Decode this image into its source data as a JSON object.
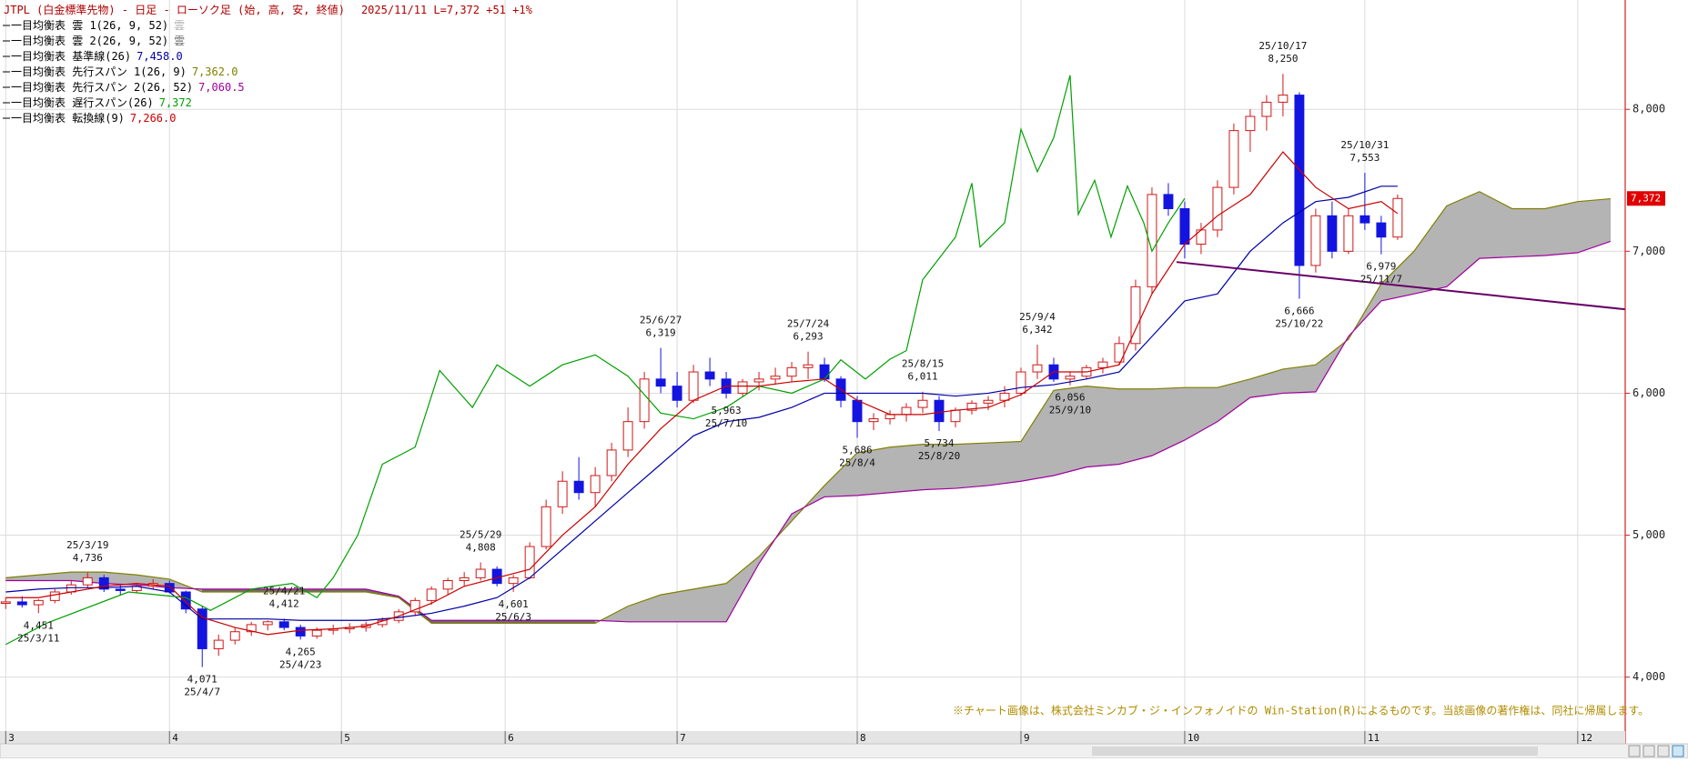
{
  "chart_data": {
    "type": "candlestick",
    "title": "JTPL (白金標準先物) - 日足 - ローソク足 (始, 高, 安, 終値)",
    "quote": "2025/11/11 L=7,372 +51 +1%",
    "credit": "※チャート画像は、株式会社ミンカブ・ジ・インフォノイドの Win-Station(R)によるものです。当該画像の著作権は、同社に帰属します。",
    "up_color": "#d01818",
    "down_color": "#1414e0",
    "grid": true,
    "xlim": [
      -0.7,
      197.8
    ],
    "xticks": [
      {
        "value": 0,
        "label": "3"
      },
      {
        "value": 20,
        "label": "4"
      },
      {
        "value": 41,
        "label": "5"
      },
      {
        "value": 61,
        "label": "6"
      },
      {
        "value": 82,
        "label": "7"
      },
      {
        "value": 104,
        "label": "8"
      },
      {
        "value": 124,
        "label": "9"
      },
      {
        "value": 144,
        "label": "10"
      },
      {
        "value": 166,
        "label": "11"
      },
      {
        "value": 192,
        "label": "12"
      }
    ],
    "ylim": [
      3620,
      8770
    ],
    "yticks": [
      {
        "value": 4000,
        "label": "4,000"
      },
      {
        "value": 5000,
        "label": "5,000"
      },
      {
        "value": 6000,
        "label": "6,000"
      },
      {
        "value": 7000,
        "label": "7,000"
      },
      {
        "value": 8000,
        "label": "8,000"
      }
    ],
    "x": [
      0,
      2,
      4,
      6,
      8,
      10,
      12,
      14,
      16,
      18,
      20,
      22,
      24,
      26,
      28,
      30,
      32,
      34,
      36,
      38,
      40,
      42,
      44,
      46,
      48,
      50,
      52,
      54,
      56,
      58,
      60,
      62,
      64,
      66,
      68,
      70,
      72,
      74,
      76,
      78,
      80,
      82,
      84,
      86,
      88,
      90,
      92,
      94,
      96,
      98,
      100,
      102,
      104,
      106,
      108,
      110,
      112,
      114,
      116,
      118,
      120,
      122,
      124,
      126,
      128,
      130,
      132,
      134,
      136,
      138,
      140,
      142,
      144,
      146,
      148,
      150,
      152,
      154,
      156,
      158,
      160,
      162,
      164,
      166,
      168,
      170
    ],
    "open": [
      4520,
      4530,
      4510,
      4540,
      4600,
      4650,
      4700,
      4620,
      4610,
      4640,
      4660,
      4600,
      4480,
      4200,
      4260,
      4320,
      4370,
      4390,
      4350,
      4290,
      4330,
      4340,
      4350,
      4370,
      4400,
      4460,
      4540,
      4620,
      4680,
      4700,
      4760,
      4660,
      4700,
      4920,
      5200,
      5380,
      5300,
      5420,
      5600,
      5800,
      6100,
      6050,
      5950,
      6150,
      6100,
      6000,
      6080,
      6100,
      6120,
      6180,
      6200,
      6100,
      5950,
      5800,
      5820,
      5850,
      5900,
      5950,
      5800,
      5880,
      5930,
      5950,
      6000,
      6150,
      6200,
      6100,
      6120,
      6180,
      6220,
      6350,
      6750,
      7400,
      7300,
      7050,
      7150,
      7450,
      7850,
      7950,
      8050,
      8100,
      6900,
      7250,
      7000,
      7250,
      7200,
      7100
    ],
    "high": [
      4560,
      4570,
      4550,
      4620,
      4680,
      4736,
      4720,
      4650,
      4660,
      4690,
      4680,
      4610,
      4500,
      4300,
      4350,
      4390,
      4400,
      4412,
      4370,
      4350,
      4370,
      4380,
      4390,
      4420,
      4480,
      4560,
      4640,
      4700,
      4740,
      4808,
      4780,
      4720,
      4950,
      5250,
      5450,
      5550,
      5480,
      5650,
      5900,
      6150,
      6319,
      6150,
      6200,
      6250,
      6150,
      6100,
      6150,
      6180,
      6220,
      6293,
      6250,
      6120,
      5980,
      5860,
      5880,
      5930,
      6011,
      5980,
      5900,
      5950,
      5980,
      6050,
      6180,
      6342,
      6250,
      6150,
      6200,
      6250,
      6400,
      6800,
      7450,
      7480,
      7350,
      7200,
      7500,
      7900,
      8000,
      8100,
      8250,
      8120,
      7300,
      7350,
      7300,
      7553,
      7250,
      7400
    ],
    "low": [
      4480,
      4490,
      4451,
      4520,
      4580,
      4630,
      4600,
      4580,
      4590,
      4620,
      4590,
      4450,
      4071,
      4150,
      4230,
      4290,
      4330,
      4330,
      4265,
      4270,
      4300,
      4310,
      4320,
      4350,
      4380,
      4430,
      4510,
      4580,
      4640,
      4680,
      4640,
      4601,
      4690,
      4900,
      5150,
      5250,
      5200,
      5380,
      5550,
      5750,
      6000,
      5900,
      5930,
      6050,
      5963,
      5980,
      6020,
      6060,
      6080,
      6100,
      6080,
      5900,
      5686,
      5740,
      5780,
      5800,
      5860,
      5734,
      5760,
      5850,
      5880,
      5900,
      5980,
      6100,
      6080,
      6056,
      6100,
      6140,
      6200,
      6300,
      6700,
      7250,
      6950,
      6980,
      7100,
      7400,
      7700,
      7850,
      7950,
      6666,
      6850,
      6950,
      6980,
      7150,
      6979,
      7080
    ],
    "close": [
      4530,
      4510,
      4540,
      4600,
      4650,
      4700,
      4620,
      4610,
      4640,
      4660,
      4600,
      4480,
      4200,
      4260,
      4320,
      4370,
      4390,
      4350,
      4290,
      4330,
      4340,
      4350,
      4370,
      4400,
      4460,
      4540,
      4620,
      4680,
      4700,
      4760,
      4660,
      4700,
      4920,
      5200,
      5380,
      5300,
      5420,
      5600,
      5800,
      6100,
      6050,
      5950,
      6150,
      6100,
      6000,
      6080,
      6100,
      6120,
      6180,
      6200,
      6100,
      5950,
      5800,
      5820,
      5850,
      5900,
      5950,
      5800,
      5880,
      5930,
      5950,
      6000,
      6150,
      6200,
      6100,
      6120,
      6180,
      6220,
      6350,
      6750,
      7400,
      7300,
      7050,
      7150,
      7450,
      7850,
      7950,
      8050,
      8100,
      6900,
      7250,
      7000,
      7250,
      7200,
      7100,
      7372
    ],
    "annotations": [
      {
        "date": "25/3/11",
        "value": 4451,
        "value_label": "4,451"
      },
      {
        "date": "25/3/19",
        "value": 4736,
        "value_label": "4,736"
      },
      {
        "date": "25/4/7",
        "value": 4071,
        "value_label": "4,071"
      },
      {
        "date": "25/4/21",
        "value": 4412,
        "value_label": "4,412"
      },
      {
        "date": "25/4/23",
        "value": 4265,
        "value_label": "4,265"
      },
      {
        "date": "25/5/29",
        "value": 4808,
        "value_label": "4,808"
      },
      {
        "date": "25/6/3",
        "value": 4601,
        "value_label": "4,601"
      },
      {
        "date": "25/6/27",
        "value": 6319,
        "value_label": "6,319"
      },
      {
        "date": "25/7/10",
        "value": 5963,
        "value_label": "5,963"
      },
      {
        "date": "25/7/24",
        "value": 6293,
        "value_label": "6,293"
      },
      {
        "date": "25/8/4",
        "value": 5686,
        "value_label": "5,686"
      },
      {
        "date": "25/8/15",
        "value": 6011,
        "value_label": "6,011"
      },
      {
        "date": "25/8/20",
        "value": 5734,
        "value_label": "5,734"
      },
      {
        "date": "25/9/4",
        "value": 6342,
        "value_label": "6,342"
      },
      {
        "date": "25/9/10",
        "value": 6056,
        "value_label": "6,056"
      },
      {
        "date": "25/10/17",
        "value": 8250,
        "value_label": "8,250"
      },
      {
        "date": "25/10/22",
        "value": 6666,
        "value_label": "6,666"
      },
      {
        "date": "25/10/31",
        "value": 7553,
        "value_label": "7,553"
      },
      {
        "date": "25/11/7",
        "value": 6979,
        "value_label": "6,979"
      }
    ],
    "last_price": {
      "value": 7372,
      "label": "7,372"
    },
    "trendline": {
      "color": "#660066",
      "x": [
        143,
        197.8
      ],
      "values": [
        6924,
        6591
      ]
    },
    "series": [
      {
        "name": "一目均衡表 雲 1(26, 9, 52)",
        "value_label": "雲",
        "color": "#b4b4b4",
        "style": "cloud-up"
      },
      {
        "name": "一目均衡表 雲 2(26, 9, 52)",
        "value_label": "雲",
        "color": "#6e6e6e",
        "style": "cloud-down"
      },
      {
        "name": "一目均衡表 基準線(26)",
        "value": 7458,
        "value_label": "7,458.0",
        "color": "#0000a8",
        "style": "line",
        "x": [
          0,
          4,
          8,
          12,
          16,
          20,
          24,
          28,
          32,
          36,
          40,
          44,
          48,
          52,
          56,
          60,
          64,
          68,
          72,
          76,
          80,
          84,
          88,
          92,
          96,
          100,
          104,
          108,
          112,
          116,
          120,
          124,
          128,
          132,
          136,
          140,
          144,
          148,
          152,
          156,
          160,
          164,
          168,
          170
        ],
        "values": [
          4600,
          4620,
          4630,
          4630,
          4640,
          4600,
          4410,
          4410,
          4410,
          4400,
          4400,
          4400,
          4420,
          4450,
          4500,
          4560,
          4700,
          4900,
          5100,
          5300,
          5500,
          5700,
          5800,
          5830,
          5900,
          6000,
          6000,
          6000,
          6000,
          5980,
          6000,
          6040,
          6060,
          6100,
          6150,
          6400,
          6650,
          6700,
          7000,
          7200,
          7350,
          7380,
          7458,
          7458
        ]
      },
      {
        "name": "一目均衡表 先行スパン 1(26, 9)",
        "value": 7362,
        "value_label": "7,362.0",
        "color": "#808000",
        "style": "span-a",
        "x": [
          0,
          4,
          8,
          12,
          16,
          20,
          24,
          28,
          32,
          36,
          40,
          44,
          48,
          52,
          56,
          60,
          64,
          68,
          72,
          76,
          80,
          84,
          88,
          92,
          96,
          100,
          104,
          108,
          112,
          116,
          120,
          124,
          128,
          132,
          136,
          140,
          144,
          148,
          152,
          156,
          160,
          164,
          168,
          172,
          176,
          180,
          184,
          188,
          192,
          196
        ],
        "values": [
          4700,
          4720,
          4740,
          4740,
          4720,
          4690,
          4600,
          4600,
          4600,
          4600,
          4600,
          4600,
          4560,
          4380,
          4380,
          4380,
          4380,
          4380,
          4380,
          4500,
          4580,
          4620,
          4660,
          4850,
          5100,
          5350,
          5580,
          5620,
          5640,
          5640,
          5650,
          5660,
          6020,
          6050,
          6030,
          6030,
          6040,
          6040,
          6100,
          6170,
          6200,
          6380,
          6770,
          7000,
          7320,
          7420,
          7300,
          7300,
          7350,
          7370
        ]
      },
      {
        "name": "一目均衡表 先行スパン 2(26, 52)",
        "value": 7060.5,
        "value_label": "7,060.5",
        "color": "#a000a0",
        "style": "span-b",
        "x": [
          0,
          4,
          8,
          12,
          16,
          20,
          24,
          28,
          32,
          36,
          40,
          44,
          48,
          52,
          56,
          60,
          64,
          68,
          72,
          76,
          80,
          84,
          88,
          92,
          96,
          100,
          104,
          108,
          112,
          116,
          120,
          124,
          128,
          132,
          136,
          140,
          144,
          148,
          152,
          156,
          160,
          164,
          168,
          172,
          176,
          180,
          184,
          188,
          192,
          196
        ],
        "values": [
          4680,
          4680,
          4680,
          4660,
          4650,
          4630,
          4620,
          4620,
          4620,
          4620,
          4620,
          4620,
          4570,
          4400,
          4400,
          4400,
          4400,
          4400,
          4400,
          4390,
          4390,
          4390,
          4390,
          4800,
          5150,
          5270,
          5280,
          5300,
          5320,
          5330,
          5350,
          5380,
          5420,
          5480,
          5500,
          5560,
          5670,
          5800,
          5970,
          6000,
          6010,
          6400,
          6650,
          6700,
          6750,
          6950,
          6960,
          6970,
          6990,
          7070
        ]
      },
      {
        "name": "一目均衡表 遅行スパン(26)",
        "value": 7372,
        "value_label": "7,372",
        "color": "#00a000",
        "style": "line",
        "x": [
          0,
          5,
          15,
          22,
          25,
          30,
          35,
          38,
          40,
          43,
          46,
          50,
          53,
          57,
          60,
          64,
          68,
          72,
          76,
          80,
          84,
          88,
          92,
          96,
          100,
          102,
          105,
          108,
          110,
          112,
          116,
          118,
          119,
          122,
          124,
          126,
          128,
          130,
          131,
          133,
          135,
          137,
          139,
          140,
          142,
          144
        ],
        "values": [
          4230,
          4380,
          4600,
          4560,
          4470,
          4620,
          4660,
          4560,
          4700,
          5000,
          5500,
          5620,
          6160,
          5900,
          6200,
          6050,
          6200,
          6270,
          6120,
          5860,
          5820,
          5900,
          6050,
          6000,
          6100,
          6235,
          6100,
          6240,
          6300,
          6800,
          7100,
          7480,
          7030,
          7200,
          7860,
          7560,
          7800,
          8240,
          7260,
          7500,
          7100,
          7460,
          7200,
          7000,
          7200,
          7372
        ]
      },
      {
        "name": "一目均衡表 転換線(9)",
        "value": 7266,
        "value_label": "7,266.0",
        "color": "#cc0000",
        "style": "line",
        "x": [
          0,
          4,
          8,
          12,
          16,
          20,
          24,
          28,
          32,
          36,
          40,
          44,
          48,
          52,
          56,
          60,
          64,
          68,
          72,
          76,
          80,
          84,
          88,
          92,
          96,
          100,
          104,
          108,
          112,
          116,
          120,
          124,
          128,
          132,
          136,
          140,
          144,
          148,
          152,
          156,
          160,
          164,
          168,
          170
        ],
        "values": [
          4560,
          4560,
          4600,
          4640,
          4660,
          4640,
          4420,
          4350,
          4300,
          4330,
          4340,
          4360,
          4430,
          4520,
          4640,
          4700,
          4760,
          5000,
          5200,
          5500,
          5750,
          5950,
          6050,
          6050,
          6080,
          6100,
          5950,
          5850,
          5850,
          5880,
          5900,
          5990,
          6150,
          6150,
          6200,
          6700,
          7050,
          7250,
          7400,
          7700,
          7450,
          7300,
          7350,
          7266
        ]
      }
    ]
  }
}
